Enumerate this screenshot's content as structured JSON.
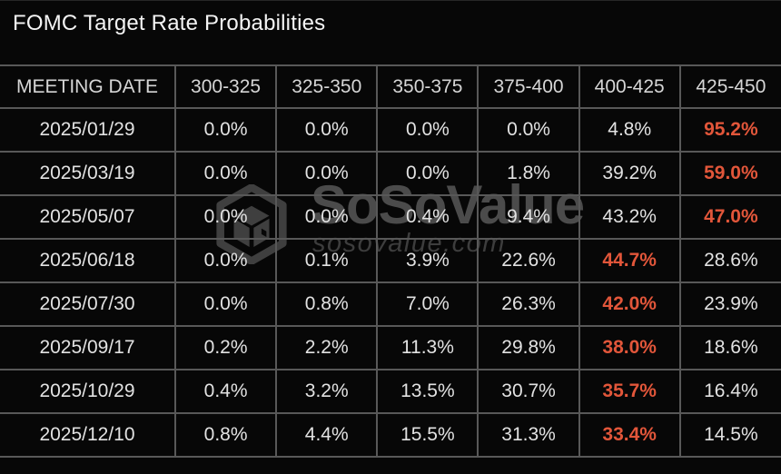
{
  "title": "FOMC Target Rate Probabilities",
  "watermark": {
    "brand": "SoSoValue",
    "domain": "sosovalue.com"
  },
  "colors": {
    "background": "#070707",
    "grid_border": "#585858",
    "text": "#e2e2e2",
    "highlight": "#e2563a",
    "watermark": "#4b4b4b"
  },
  "table": {
    "columns": [
      "MEETING DATE",
      "300-325",
      "325-350",
      "350-375",
      "375-400",
      "400-425",
      "425-450"
    ],
    "rows": [
      {
        "date": "2025/01/29",
        "values": [
          "0.0%",
          "0.0%",
          "0.0%",
          "0.0%",
          "4.8%",
          "95.2%"
        ],
        "highlight_index": 5
      },
      {
        "date": "2025/03/19",
        "values": [
          "0.0%",
          "0.0%",
          "0.0%",
          "1.8%",
          "39.2%",
          "59.0%"
        ],
        "highlight_index": 5
      },
      {
        "date": "2025/05/07",
        "values": [
          "0.0%",
          "0.0%",
          "0.4%",
          "9.4%",
          "43.2%",
          "47.0%"
        ],
        "highlight_index": 5
      },
      {
        "date": "2025/06/18",
        "values": [
          "0.0%",
          "0.1%",
          "3.9%",
          "22.6%",
          "44.7%",
          "28.6%"
        ],
        "highlight_index": 4
      },
      {
        "date": "2025/07/30",
        "values": [
          "0.0%",
          "0.8%",
          "7.0%",
          "26.3%",
          "42.0%",
          "23.9%"
        ],
        "highlight_index": 4
      },
      {
        "date": "2025/09/17",
        "values": [
          "0.2%",
          "2.2%",
          "11.3%",
          "29.8%",
          "38.0%",
          "18.6%"
        ],
        "highlight_index": 4
      },
      {
        "date": "2025/10/29",
        "values": [
          "0.4%",
          "3.2%",
          "13.5%",
          "30.7%",
          "35.7%",
          "16.4%"
        ],
        "highlight_index": 4
      },
      {
        "date": "2025/12/10",
        "values": [
          "0.8%",
          "4.4%",
          "15.5%",
          "31.3%",
          "33.4%",
          "14.5%"
        ],
        "highlight_index": 4
      }
    ]
  },
  "chart_data": {
    "type": "table",
    "title": "FOMC Target Rate Probabilities",
    "columns": [
      "MEETING DATE",
      "300-325",
      "325-350",
      "350-375",
      "375-400",
      "400-425",
      "425-450"
    ],
    "rows": [
      [
        "2025/01/29",
        0.0,
        0.0,
        0.0,
        0.0,
        4.8,
        95.2
      ],
      [
        "2025/03/19",
        0.0,
        0.0,
        0.0,
        1.8,
        39.2,
        59.0
      ],
      [
        "2025/05/07",
        0.0,
        0.0,
        0.4,
        9.4,
        43.2,
        47.0
      ],
      [
        "2025/06/18",
        0.0,
        0.1,
        3.9,
        22.6,
        44.7,
        28.6
      ],
      [
        "2025/07/30",
        0.0,
        0.8,
        7.0,
        26.3,
        42.0,
        23.9
      ],
      [
        "2025/09/17",
        0.2,
        2.2,
        11.3,
        29.8,
        38.0,
        18.6
      ],
      [
        "2025/10/29",
        0.4,
        3.2,
        13.5,
        30.7,
        35.7,
        16.4
      ],
      [
        "2025/12/10",
        0.8,
        4.4,
        15.5,
        31.3,
        33.4,
        14.5
      ]
    ],
    "units": "percent",
    "highlighted_cells_note": "max probability per meeting shown in orange"
  }
}
